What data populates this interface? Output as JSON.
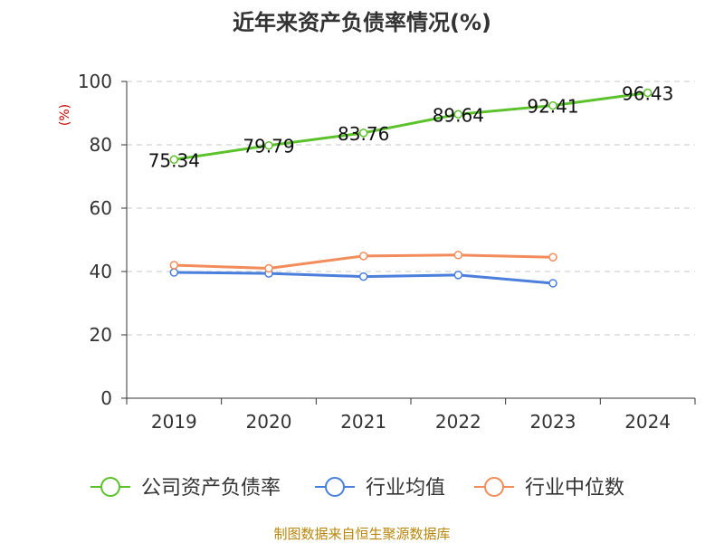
{
  "chart_data": {
    "type": "line",
    "title": "近年来资产负债率情况(%)",
    "ylabel": "(%)",
    "xlabel": "",
    "categories": [
      "2019",
      "2020",
      "2021",
      "2022",
      "2023",
      "2024"
    ],
    "ylim": [
      0,
      100
    ],
    "yticks": [
      0,
      20,
      40,
      60,
      80,
      100
    ],
    "grid": true,
    "legend_position": "bottom",
    "series": [
      {
        "name": "公司资产负债率",
        "color": "#5cc22c",
        "values": [
          75.34,
          79.79,
          83.76,
          89.64,
          92.41,
          96.43
        ],
        "labels": [
          "75.34",
          "79.79",
          "83.76",
          "89.64",
          "92.41",
          "96.43"
        ]
      },
      {
        "name": "行业均值",
        "color": "#4a7fdc",
        "values": [
          39.7,
          39.4,
          38.4,
          38.9,
          36.3,
          null
        ]
      },
      {
        "name": "行业中位数",
        "color": "#f28c5a",
        "values": [
          42.0,
          41.0,
          44.9,
          45.2,
          44.5,
          null
        ]
      }
    ]
  },
  "footer": {
    "source": "制图数据来自恒生聚源数据库"
  }
}
